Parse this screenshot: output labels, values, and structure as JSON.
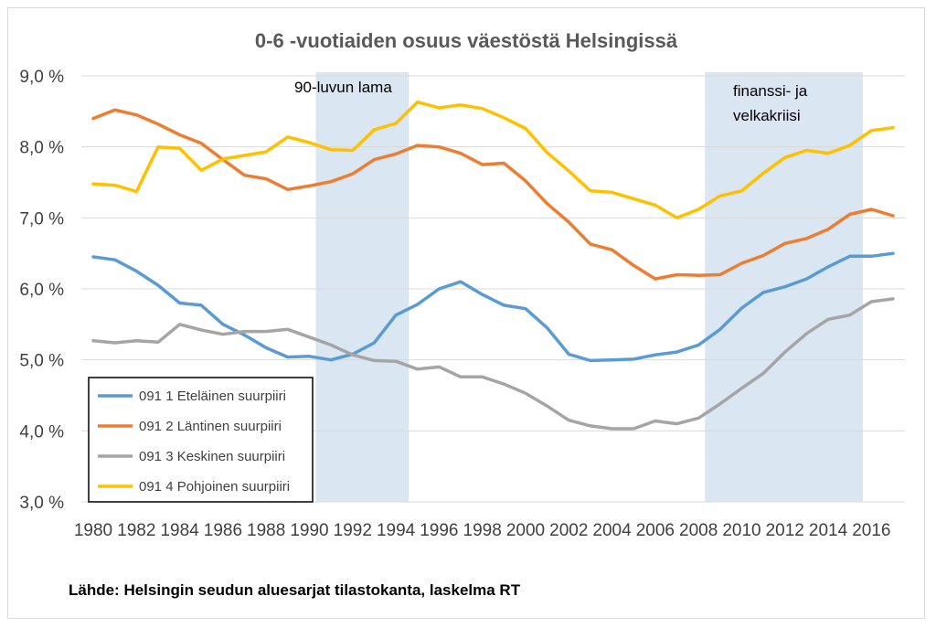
{
  "chart_data": {
    "type": "line",
    "title": "0-6 -vuotiaiden osuus väestöstä Helsingissä",
    "xlabel": "",
    "ylabel": "",
    "ylim": [
      3.0,
      9.0
    ],
    "y_ticks": [
      "3,0 %",
      "4,0 %",
      "5,0 %",
      "6,0 %",
      "7,0 %",
      "8,0 %",
      "9,0 %"
    ],
    "y_tick_values": [
      3.0,
      4.0,
      5.0,
      6.0,
      7.0,
      8.0,
      9.0
    ],
    "x_ticks": [
      "1980",
      "1982",
      "1984",
      "1986",
      "1988",
      "1990",
      "1992",
      "1994",
      "1996",
      "1998",
      "2000",
      "2002",
      "2004",
      "2006",
      "2008",
      "2010",
      "2012",
      "2014",
      "2016"
    ],
    "x": [
      1980,
      1981,
      1982,
      1983,
      1984,
      1985,
      1986,
      1987,
      1988,
      1989,
      1990,
      1991,
      1992,
      1993,
      1994,
      1995,
      1996,
      1997,
      1998,
      1999,
      2000,
      2001,
      2002,
      2003,
      2004,
      2005,
      2006,
      2007,
      2008,
      2009,
      2010,
      2011,
      2012,
      2013,
      2014,
      2015,
      2016,
      2017
    ],
    "series": [
      {
        "name": "091 1 Eteläinen suurpiiri",
        "color": "#5b9bd5",
        "values": [
          6.45,
          6.41,
          6.25,
          6.05,
          5.8,
          5.77,
          5.5,
          5.35,
          5.17,
          5.04,
          5.05,
          5.0,
          5.08,
          5.24,
          5.63,
          5.78,
          6.0,
          6.1,
          5.92,
          5.77,
          5.72,
          5.45,
          5.08,
          4.99,
          5.0,
          5.01,
          5.07,
          5.11,
          5.21,
          5.43,
          5.73,
          5.95,
          6.03,
          6.14,
          6.31,
          6.46,
          6.46,
          6.5
        ]
      },
      {
        "name": "091 2 Läntinen suurpiiri",
        "color": "#ed7d31",
        "values": [
          8.4,
          8.52,
          8.45,
          8.32,
          8.17,
          8.05,
          7.82,
          7.6,
          7.55,
          7.4,
          7.45,
          7.51,
          7.62,
          7.82,
          7.9,
          8.02,
          8.0,
          7.91,
          7.75,
          7.77,
          7.52,
          7.2,
          6.94,
          6.63,
          6.55,
          6.33,
          6.14,
          6.2,
          6.19,
          6.2,
          6.36,
          6.47,
          6.64,
          6.71,
          6.84,
          7.05,
          7.12,
          7.03
        ]
      },
      {
        "name": "091 3 Keskinen suurpiiri",
        "color": "#a5a5a5",
        "values": [
          5.27,
          5.24,
          5.27,
          5.25,
          5.5,
          5.42,
          5.36,
          5.4,
          5.4,
          5.43,
          5.32,
          5.21,
          5.07,
          4.99,
          4.98,
          4.87,
          4.9,
          4.76,
          4.76,
          4.66,
          4.53,
          4.35,
          4.15,
          4.07,
          4.03,
          4.03,
          4.14,
          4.1,
          4.18,
          4.38,
          4.6,
          4.81,
          5.11,
          5.37,
          5.57,
          5.63,
          5.82,
          5.86
        ]
      },
      {
        "name": "091 4 Pohjoinen suurpiiri",
        "color": "#ffc000",
        "values": [
          7.48,
          7.46,
          7.37,
          8.0,
          7.98,
          7.67,
          7.83,
          7.88,
          7.93,
          8.14,
          8.06,
          7.96,
          7.95,
          8.24,
          8.33,
          8.63,
          8.55,
          8.59,
          8.54,
          8.41,
          8.26,
          7.92,
          7.66,
          7.38,
          7.36,
          7.27,
          7.18,
          7.0,
          7.12,
          7.31,
          7.38,
          7.63,
          7.85,
          7.95,
          7.91,
          8.02,
          8.23,
          8.27
        ]
      }
    ],
    "shaded_periods": [
      {
        "label": "90-luvun lama",
        "start": 1990.3,
        "end": 1994.6
      },
      {
        "label_lines": [
          "finanssi- ja",
          "velkakriisi"
        ],
        "start": 2008.3,
        "end": 2015.6
      }
    ],
    "shade_color": "#dae6f2",
    "legend_position": "lower-left",
    "grid": true
  },
  "footer": {
    "source": "Lähde: Helsingin seudun aluesarjat tilastokanta, laskelma RT"
  }
}
